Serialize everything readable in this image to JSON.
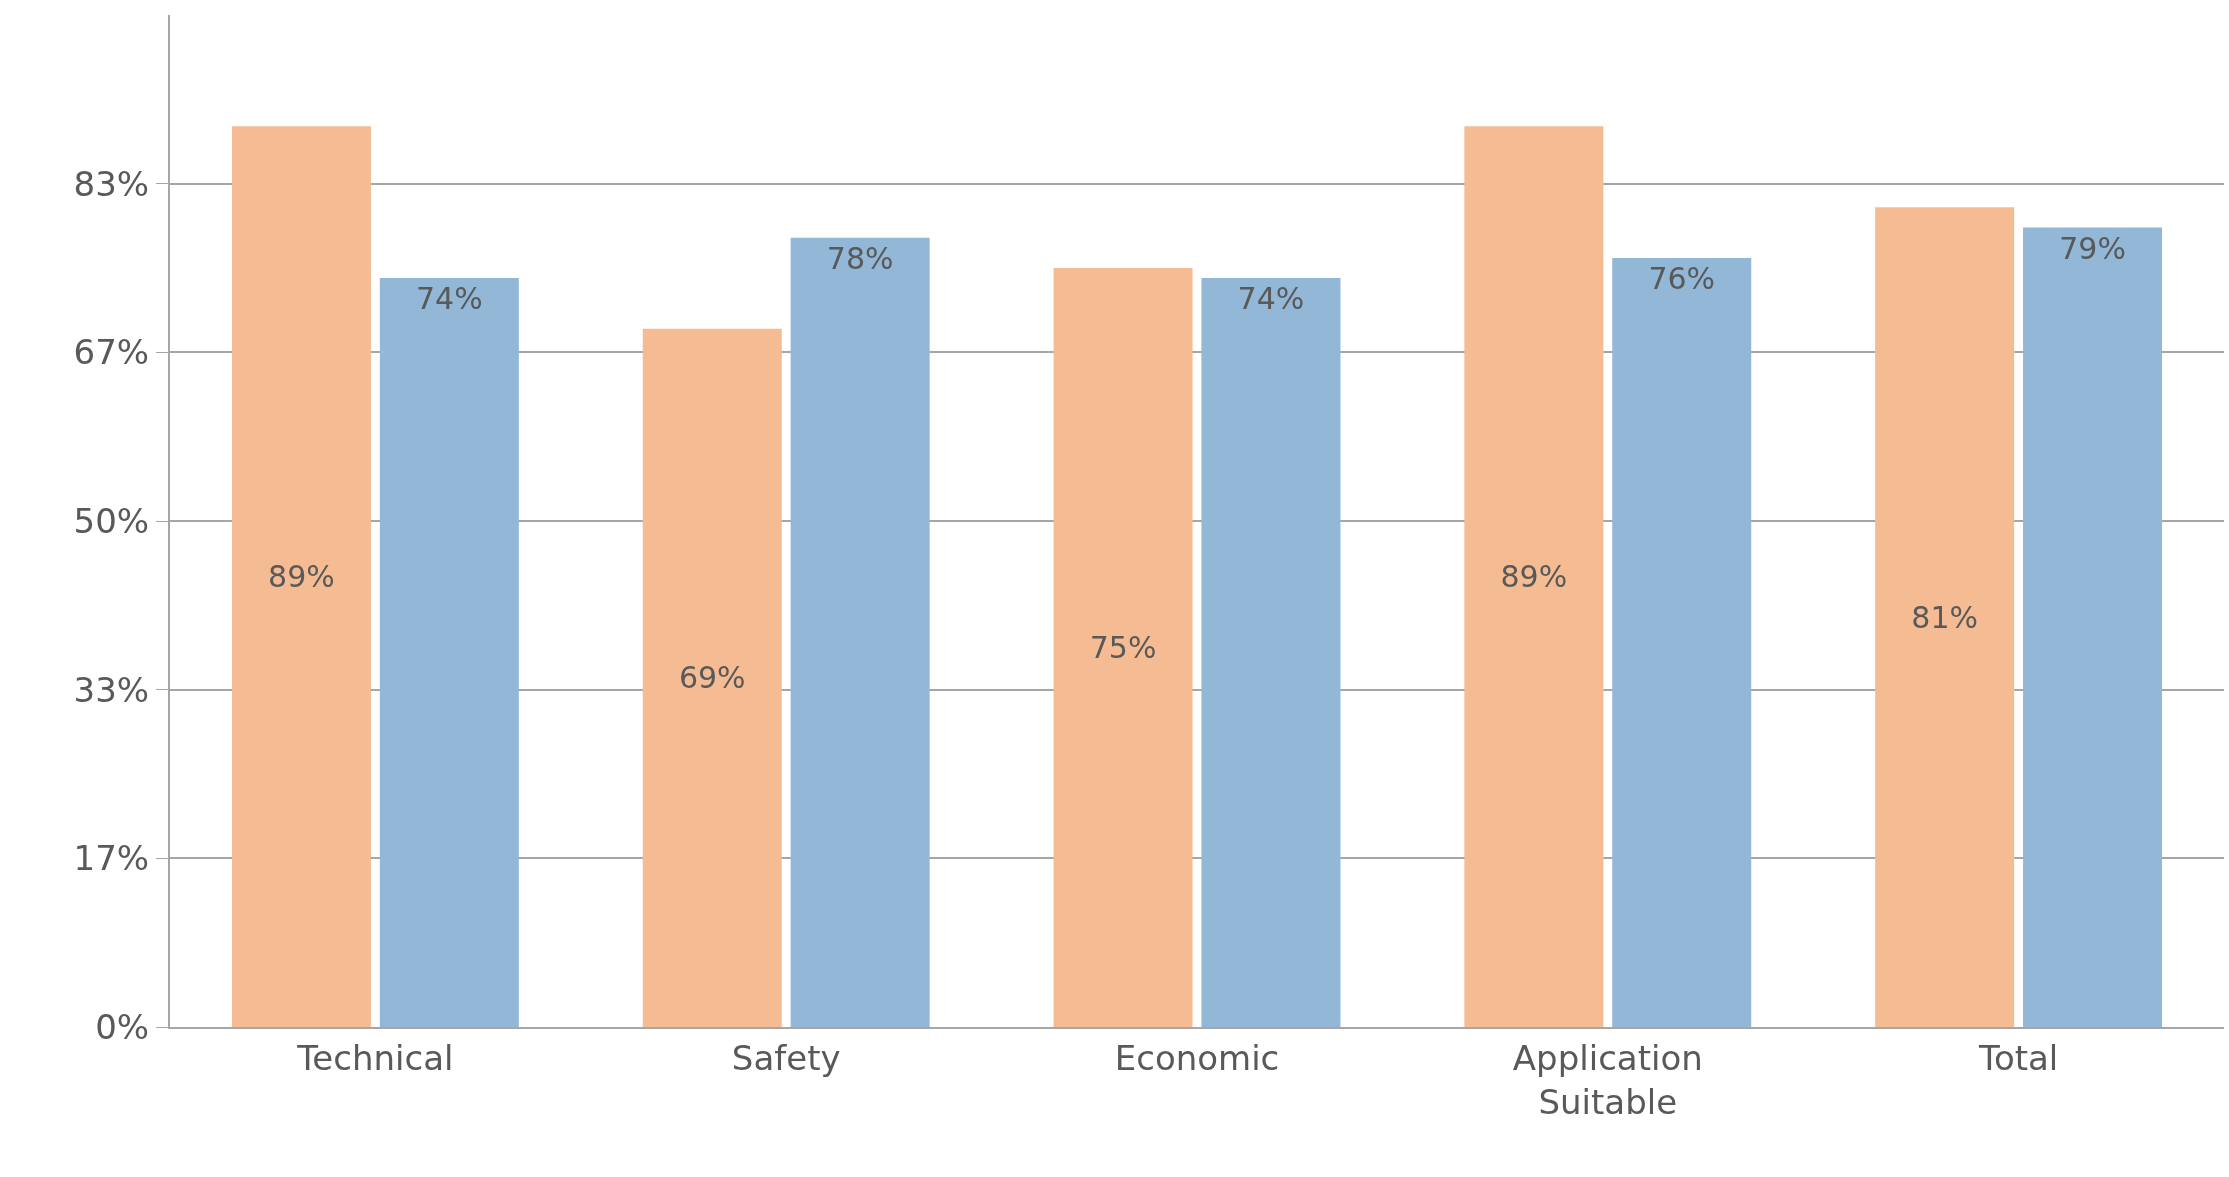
{
  "chart_data": {
    "type": "bar",
    "categories": [
      "Technical",
      "Safety",
      "Economic",
      "Application Suitable",
      "Total"
    ],
    "series": [
      {
        "color": "#f5bc94",
        "values": [
          89,
          69,
          75,
          89,
          81
        ],
        "value_labels": [
          "89%",
          "69%",
          "75%",
          "89%",
          "81%"
        ]
      },
      {
        "color": "#92b7d7",
        "values": [
          74,
          78,
          74,
          76,
          79
        ],
        "value_labels": [
          "74%",
          "78%",
          "74%",
          "76%",
          "79%"
        ]
      }
    ],
    "ylim": [
      0,
      100
    ],
    "yticks": [
      {
        "value": 0,
        "label": "0%"
      },
      {
        "value": 16.667,
        "label": "17%"
      },
      {
        "value": 33.333,
        "label": "33%"
      },
      {
        "value": 50,
        "label": "50%"
      },
      {
        "value": 66.667,
        "label": "67%"
      },
      {
        "value": 83.333,
        "label": "83%"
      }
    ],
    "grid": "y"
  }
}
